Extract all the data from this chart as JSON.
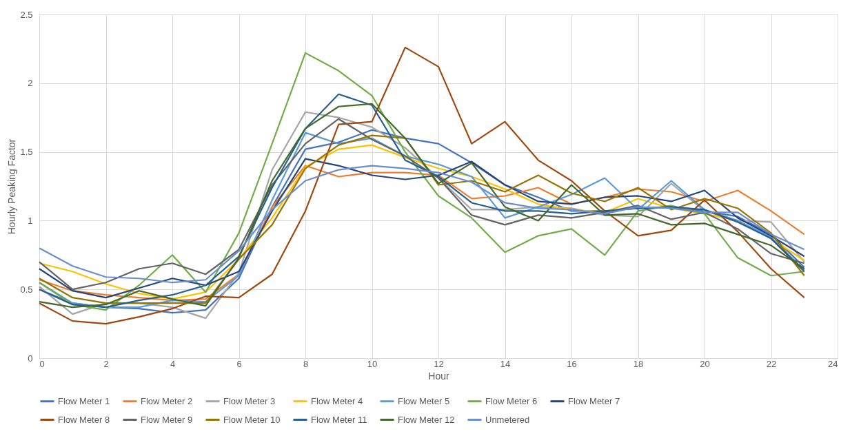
{
  "chart_data": {
    "type": "line",
    "xlabel": "Hour",
    "ylabel": "Hourly Peaking Factor",
    "x": [
      0,
      1,
      2,
      3,
      4,
      5,
      6,
      7,
      8,
      9,
      10,
      11,
      12,
      13,
      14,
      15,
      16,
      17,
      18,
      19,
      20,
      21,
      22,
      23
    ],
    "xlim": [
      0,
      24
    ],
    "xticks": [
      0,
      2,
      4,
      6,
      8,
      10,
      12,
      14,
      16,
      18,
      20,
      22,
      24
    ],
    "ylim": [
      0,
      2.5
    ],
    "yticks": [
      0,
      0.5,
      1,
      1.5,
      2,
      2.5
    ],
    "grid": true,
    "legend": "bottom",
    "marker": "none",
    "line_style": "solid",
    "series": [
      {
        "name": "Flow Meter 1",
        "color": "#4472c4",
        "values": [
          0.5,
          0.4,
          0.37,
          0.36,
          0.33,
          0.35,
          0.58,
          1.1,
          1.52,
          1.57,
          1.66,
          1.6,
          1.56,
          1.42,
          1.26,
          1.17,
          1.07,
          1.07,
          1.09,
          1.1,
          1.07,
          1.03,
          0.9,
          0.66
        ]
      },
      {
        "name": "Flow Meter 2",
        "color": "#ed7d31",
        "values": [
          0.57,
          0.49,
          0.46,
          0.44,
          0.42,
          0.43,
          0.61,
          1.1,
          1.4,
          1.32,
          1.35,
          1.35,
          1.33,
          1.16,
          1.18,
          1.24,
          1.12,
          1.17,
          1.23,
          1.21,
          1.14,
          1.22,
          1.07,
          0.9
        ]
      },
      {
        "name": "Flow Meter 3",
        "color": "#a5a5a5",
        "values": [
          0.52,
          0.32,
          0.4,
          0.4,
          0.37,
          0.29,
          0.62,
          1.37,
          1.79,
          1.75,
          1.68,
          1.53,
          1.31,
          1.08,
          1.08,
          1.1,
          1.09,
          1.04,
          1.03,
          1.27,
          1.07,
          1.0,
          0.99,
          0.7
        ]
      },
      {
        "name": "Flow Meter 4",
        "color": "#ffc000",
        "values": [
          0.69,
          0.63,
          0.54,
          0.47,
          0.43,
          0.48,
          0.72,
          1.02,
          1.39,
          1.52,
          1.55,
          1.46,
          1.38,
          1.32,
          1.23,
          1.12,
          1.08,
          1.06,
          1.16,
          1.09,
          1.05,
          1.0,
          0.87,
          0.71
        ]
      },
      {
        "name": "Flow Meter 5",
        "color": "#5b9bd5",
        "values": [
          0.55,
          0.4,
          0.37,
          0.37,
          0.42,
          0.41,
          0.6,
          1.15,
          1.64,
          1.56,
          1.6,
          1.47,
          1.41,
          1.32,
          1.02,
          1.1,
          1.19,
          1.31,
          1.08,
          1.29,
          1.08,
          1.0,
          0.88,
          0.64
        ]
      },
      {
        "name": "Flow Meter 6",
        "color": "#70ad47",
        "values": [
          0.55,
          0.39,
          0.35,
          0.53,
          0.75,
          0.48,
          0.91,
          1.56,
          2.22,
          2.09,
          1.91,
          1.5,
          1.18,
          1.02,
          0.77,
          0.89,
          0.94,
          0.75,
          1.07,
          1.11,
          1.05,
          0.73,
          0.6,
          0.63
        ]
      },
      {
        "name": "Flow Meter 7",
        "color": "#264478",
        "values": [
          0.65,
          0.49,
          0.44,
          0.51,
          0.58,
          0.53,
          0.63,
          1.07,
          1.45,
          1.4,
          1.33,
          1.3,
          1.33,
          1.43,
          1.26,
          1.14,
          1.12,
          1.17,
          1.18,
          1.14,
          1.22,
          1.02,
          0.89,
          0.74
        ]
      },
      {
        "name": "Flow Meter 8",
        "color": "#9e480e",
        "values": [
          0.4,
          0.27,
          0.25,
          0.3,
          0.36,
          0.45,
          0.44,
          0.61,
          1.07,
          1.7,
          1.72,
          2.26,
          2.12,
          1.56,
          1.72,
          1.44,
          1.29,
          1.07,
          0.89,
          0.93,
          1.15,
          0.92,
          0.65,
          0.44
        ]
      },
      {
        "name": "Flow Meter 9",
        "color": "#636363",
        "values": [
          0.7,
          0.5,
          0.55,
          0.65,
          0.69,
          0.61,
          0.79,
          1.26,
          1.56,
          1.74,
          1.59,
          1.47,
          1.31,
          1.04,
          0.97,
          1.04,
          1.02,
          1.06,
          1.11,
          1.01,
          1.06,
          0.94,
          0.76,
          0.69
        ]
      },
      {
        "name": "Flow Meter 10",
        "color": "#997300",
        "values": [
          0.58,
          0.44,
          0.4,
          0.4,
          0.4,
          0.4,
          0.72,
          0.97,
          1.38,
          1.55,
          1.62,
          1.6,
          1.26,
          1.29,
          1.21,
          1.33,
          1.2,
          1.14,
          1.24,
          1.08,
          1.16,
          1.09,
          0.91,
          0.6
        ]
      },
      {
        "name": "Flow Meter 11",
        "color": "#255e91",
        "values": [
          0.5,
          0.39,
          0.37,
          0.42,
          0.46,
          0.53,
          0.74,
          1.24,
          1.67,
          1.92,
          1.84,
          1.44,
          1.32,
          1.13,
          1.07,
          1.07,
          1.05,
          1.07,
          1.09,
          1.1,
          1.08,
          0.99,
          0.87,
          0.63
        ]
      },
      {
        "name": "Flow Meter 12",
        "color": "#43682b",
        "values": [
          0.41,
          0.37,
          0.39,
          0.49,
          0.43,
          0.38,
          0.73,
          1.29,
          1.67,
          1.83,
          1.85,
          1.6,
          1.27,
          1.42,
          1.1,
          1.0,
          1.26,
          1.04,
          1.05,
          0.97,
          0.98,
          0.9,
          0.82,
          0.65
        ]
      },
      {
        "name": "Unmetered",
        "color": "#698ed0",
        "values": [
          0.8,
          0.67,
          0.59,
          0.58,
          0.55,
          0.57,
          0.78,
          1.08,
          1.29,
          1.37,
          1.4,
          1.38,
          1.35,
          1.28,
          1.13,
          1.09,
          1.08,
          1.05,
          1.1,
          1.09,
          1.06,
          1.06,
          0.9,
          0.79
        ]
      }
    ]
  }
}
